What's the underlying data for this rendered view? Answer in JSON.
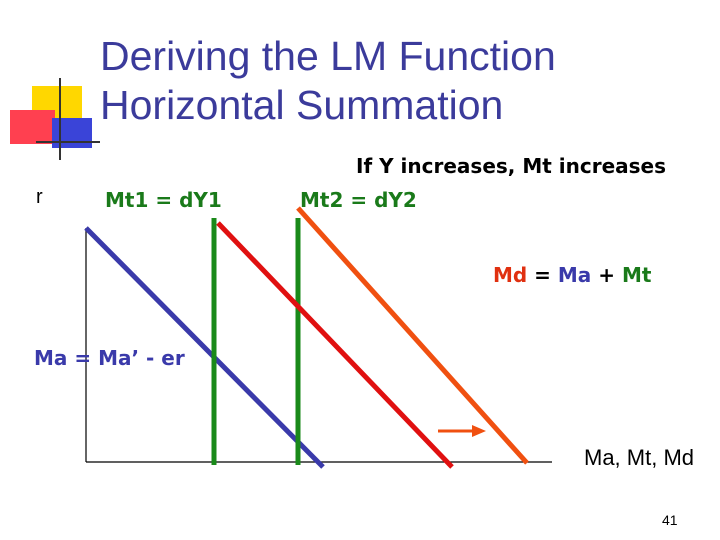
{
  "slide": {
    "title_line1": "Deriving the LM Function",
    "title_line2": "Horizontal Summation",
    "page_number": "41"
  },
  "diagram": {
    "y_axis_label": "r",
    "x_axis_label": "Ma, Mt, Md",
    "mt1_label": "Mt1 = dY1",
    "mt2_label": "Mt2 = dY2",
    "note": "If Y increases, Mt increases",
    "md_eq": {
      "md": "Md",
      "eq1": " = ",
      "ma": "Ma",
      "plus": " + ",
      "mt": "Mt"
    },
    "ma_label": "Ma = Ma’ - er"
  },
  "colors": {
    "title": "#3b3b9b",
    "ma_line": "#3a3aaa",
    "mt_line": "#1a8a1a",
    "md1_line": "#e01010",
    "md2_line": "#f05010",
    "arrow": "#f05010",
    "logo_yellow": "#ffd700",
    "logo_red": "#ff4050",
    "logo_blue": "#3a44d8"
  }
}
